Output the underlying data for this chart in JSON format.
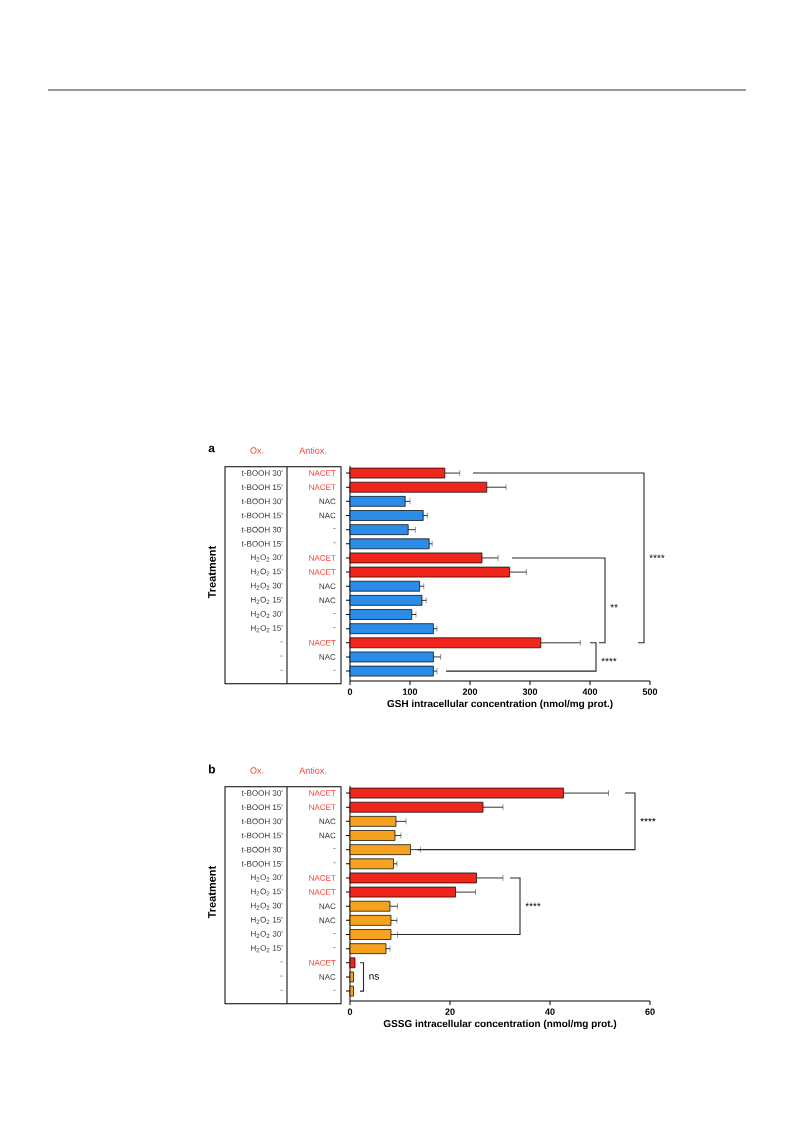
{
  "chart_data": [
    {
      "type": "bar",
      "orientation": "horizontal",
      "title": "a",
      "xlabel": "GSH intracellular concentration (nmol/mg prot.)",
      "ylabel": "Treatment",
      "categories": [
        "t-BOOH 30'",
        "t-BOOH 15'",
        "t-BOOH 30'",
        "t-BOOH 15'",
        "t-BOOH 30'",
        "t-BOOH 15'",
        "H$_{2}$O$_{2}$ 30'",
        "H$_{2}$O$_{2}$ 15'",
        "H$_{2}$O$_{2}$ 30'",
        "H$_{2}$O$_{2}$ 15'",
        "H$_{2}$O$_{2}$ 30'",
        "H$_{2}$O$_{2}$ 15'",
        "-",
        "-",
        "-"
      ],
      "y2_categories": [
        "NACET",
        "NACET",
        "NAC",
        "NAC",
        "-",
        "-",
        "NACET",
        "NACET",
        "NAC",
        "NAC",
        "-",
        "-",
        "NACET",
        "NAC",
        "-"
      ],
      "values": [
        158,
        228,
        92,
        122,
        97,
        132,
        220,
        266,
        116,
        120,
        103,
        139,
        318,
        139,
        139
      ],
      "errors": [
        25,
        32,
        8,
        7,
        12,
        5,
        27,
        28,
        7,
        7,
        7,
        6,
        66,
        12,
        6
      ],
      "colors": [
        "#f0261c",
        "#f0261c",
        "#2c8de8",
        "#2c8de8",
        "#2c8de8",
        "#2c8de8",
        "#f0261c",
        "#f0261c",
        "#2c8de8",
        "#2c8de8",
        "#2c8de8",
        "#2c8de8",
        "#f0261c",
        "#2c8de8",
        "#2c8de8"
      ],
      "xlim": [
        0,
        500
      ],
      "xticks": [
        0,
        100,
        200,
        300,
        400,
        500
      ],
      "annotations": [
        "Ox.",
        "Antiox.",
        "****",
        "**",
        "****"
      ]
    },
    {
      "type": "bar",
      "orientation": "horizontal",
      "title": "b",
      "xlabel": "GSSG intracellular concentration (nmol/mg prot.)",
      "ylabel": "Treatment",
      "categories": [
        "t-BOOH 30'",
        "t-BOOH 15'",
        "t-BOOH 30'",
        "t-BOOH 15'",
        "t-BOOH 30'",
        "t-BOOH 15'",
        "H$_{2}$O$_{2}$ 30'",
        "H$_{2}$O$_{2}$ 15'",
        "H$_{2}$O$_{2}$ 30'",
        "H$_{2}$O$_{2}$ 15'",
        "H$_{2}$O$_{2}$ 30'",
        "H$_{2}$O$_{2}$ 15'",
        "-",
        "-",
        "-"
      ],
      "y2_categories": [
        "NACET",
        "NACET",
        "NAC",
        "NAC",
        "-",
        "-",
        "NACET",
        "NACET",
        "NAC",
        "NAC",
        "-",
        "-",
        "NACET",
        "NAC",
        "-"
      ],
      "values": [
        42.7,
        26.6,
        9.2,
        9.0,
        12.1,
        8.7,
        25.3,
        21.1,
        8.0,
        8.2,
        8.2,
        7.2,
        1.0,
        0.7,
        0.7
      ],
      "errors": [
        9,
        4,
        2,
        1.2,
        2,
        0.7,
        5.3,
        4,
        1.5,
        1.2,
        1.3,
        0.8,
        null,
        null,
        null
      ],
      "colors": [
        "#f0261c",
        "#f0261c",
        "#f7a21e",
        "#f7a21e",
        "#f7a21e",
        "#f7a21e",
        "#f0261c",
        "#f0261c",
        "#f7a21e",
        "#f7a21e",
        "#f7a21e",
        "#f7a21e",
        "#f0261c",
        "#f7a21e",
        "#f7a21e"
      ],
      "xlim": [
        0,
        60
      ],
      "xticks": [
        0,
        20,
        40,
        60
      ],
      "annotations": [
        "Ox.",
        "Antiox.",
        "****",
        "****",
        "ns"
      ]
    }
  ]
}
